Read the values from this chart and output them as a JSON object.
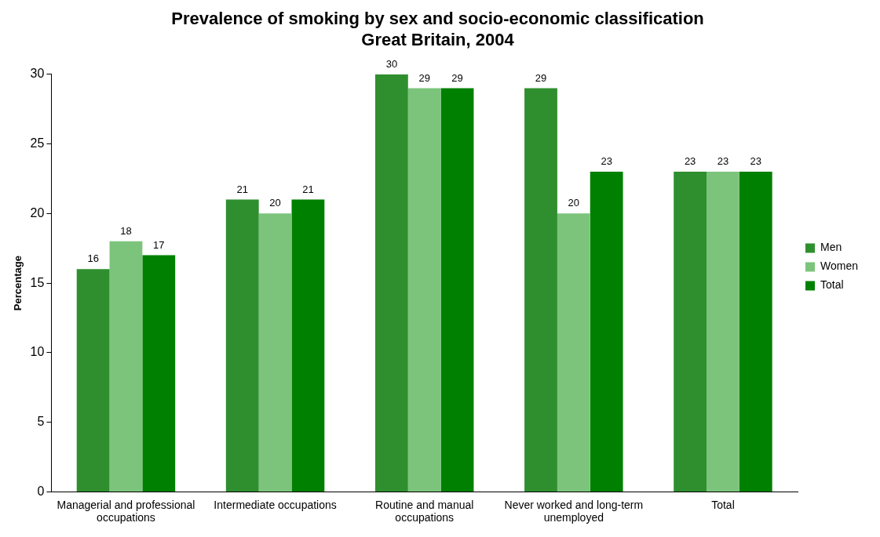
{
  "chart_data": {
    "type": "bar",
    "title": [
      "Prevalence of smoking by sex and socio-economic classification",
      "Great Britain, 2004"
    ],
    "ylabel": "Percentage",
    "categories": [
      "Managerial and professional occupations",
      "Intermediate occupations",
      "Routine and manual occupations",
      "Never worked and long-term unemployed",
      "Total"
    ],
    "series": [
      {
        "name": "Men",
        "color": "#2f8f2f",
        "values": [
          16,
          21,
          30,
          29,
          23
        ]
      },
      {
        "name": "Women",
        "color": "#7cc47c",
        "values": [
          18,
          20,
          29,
          20,
          23
        ]
      },
      {
        "name": "Total",
        "color": "#008000",
        "values": [
          17,
          21,
          29,
          23,
          23
        ]
      }
    ],
    "ylim": [
      0,
      30
    ],
    "yticks": [
      0,
      5,
      10,
      15,
      20,
      25,
      30
    ],
    "grid": false,
    "legend": "right",
    "data_labels": true
  }
}
